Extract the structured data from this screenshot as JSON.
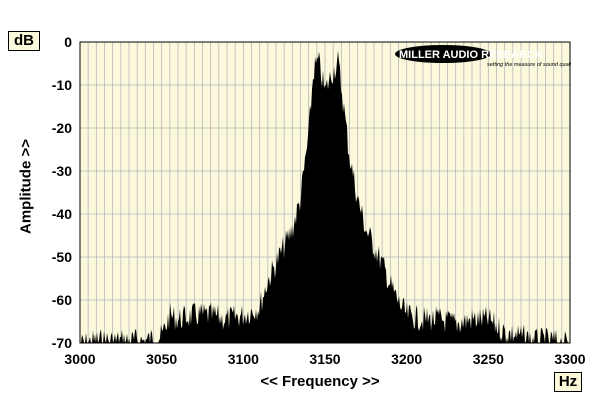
{
  "chart_data": {
    "type": "area",
    "brand": "MILLER AUDIO RESEARCH",
    "tagline": "setting the measure of sound quality",
    "y_unit": "dB",
    "x_unit": "Hz",
    "ylabel": "Amplitude >>",
    "xlabel": "<< Frequency >>",
    "xlim": [
      3000,
      3300
    ],
    "ylim": [
      -70,
      0
    ],
    "x_ticks": [
      3000,
      3050,
      3100,
      3150,
      3200,
      3250,
      3300
    ],
    "y_ticks": [
      0,
      -10,
      -20,
      -30,
      -40,
      -50,
      -60,
      -70
    ],
    "grid": true,
    "colors": {
      "plot_bg": "#fbf8dc",
      "grid": "#b8b8b8",
      "fill": "#000000",
      "box_bg": "#fbf8dc"
    },
    "series": [
      {
        "x": [
          3000,
          3010,
          3020,
          3030,
          3040,
          3050,
          3055,
          3060,
          3070,
          3080,
          3090,
          3100,
          3110,
          3115,
          3120,
          3125,
          3130,
          3135,
          3140,
          3143,
          3146,
          3150,
          3154,
          3158,
          3161,
          3165,
          3170,
          3175,
          3180,
          3185,
          3190,
          3195,
          3200,
          3210,
          3220,
          3230,
          3240,
          3250,
          3260,
          3270,
          3280,
          3290,
          3300
        ],
        "y": [
          -69,
          -68,
          -68,
          -68,
          -68,
          -67,
          -62,
          -63,
          -62,
          -62,
          -63,
          -62,
          -60,
          -54,
          -50,
          -46,
          -42,
          -35,
          -20,
          -5,
          -3,
          -10,
          -6,
          -3,
          -12,
          -25,
          -35,
          -42,
          -46,
          -50,
          -55,
          -59,
          -62,
          -63,
          -63,
          -64,
          -63,
          -63,
          -66,
          -67,
          -68,
          -68,
          -69
        ]
      }
    ]
  }
}
